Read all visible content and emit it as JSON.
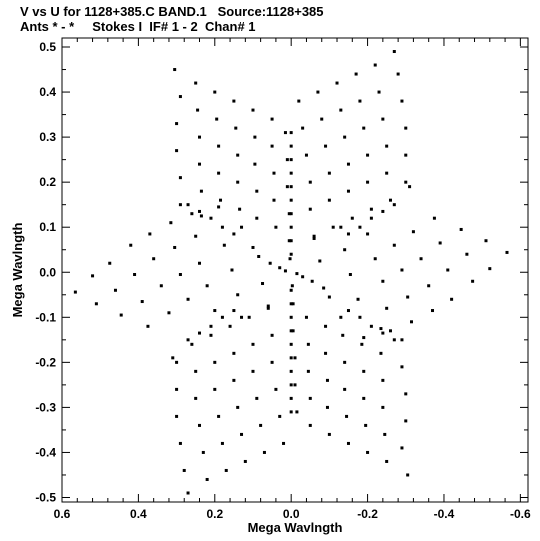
{
  "header": {
    "line1": "V vs U for 1128+385.C BAND.1   Source:1128+385",
    "line2": "Ants * - *     Stokes I  IF# 1 - 2  Chan# 1"
  },
  "chart_data": {
    "type": "scatter",
    "xlabel": "Mega Wavlngth",
    "ylabel": "Mega Wavlngth",
    "xlim": [
      0.6,
      -0.62
    ],
    "ylim": [
      -0.51,
      0.52
    ],
    "xticks": [
      0.6,
      0.4,
      0.2,
      0.0,
      -0.2,
      -0.4,
      -0.6
    ],
    "xtick_labels": [
      "0.6",
      "0.4",
      "0.2",
      "0.0",
      "-0.2",
      "-0.4",
      "-0.6"
    ],
    "yticks": [
      0.5,
      0.4,
      0.3,
      0.2,
      0.1,
      0.0,
      -0.1,
      -0.2,
      -0.3,
      -0.4,
      -0.5
    ],
    "ytick_labels": [
      "0.5",
      "0.4",
      "0.3",
      "0.2",
      "0.1",
      "0.0",
      "-0.1",
      "-0.2",
      "-0.3",
      "-0.4",
      "-0.5"
    ],
    "grid": false,
    "marker_color": "#000000",
    "series": [
      {
        "values": [
          [
            0.565,
            -0.044
          ],
          [
            0.52,
            -0.008
          ],
          [
            0.51,
            -0.07
          ],
          [
            0.475,
            0.02
          ],
          [
            0.46,
            -0.04
          ],
          [
            0.445,
            -0.095
          ],
          [
            0.42,
            0.06
          ],
          [
            0.41,
            -0.005
          ],
          [
            0.39,
            -0.065
          ],
          [
            0.375,
            -0.12
          ],
          [
            0.37,
            0.085
          ],
          [
            0.36,
            0.03
          ],
          [
            0.34,
            -0.03
          ],
          [
            0.32,
            -0.09
          ],
          [
            0.315,
            0.11
          ],
          [
            0.305,
            0.055
          ],
          [
            0.29,
            -0.005
          ],
          [
            0.27,
            -0.06
          ],
          [
            0.26,
            0.13
          ],
          [
            0.25,
            0.08
          ],
          [
            0.24,
            0.02
          ],
          [
            0.22,
            -0.03
          ],
          [
            0.2,
            -0.085
          ],
          [
            0.19,
            0.145
          ],
          [
            0.175,
            0.06
          ],
          [
            0.155,
            0.005
          ],
          [
            0.14,
            -0.05
          ],
          [
            0.13,
            -0.1
          ],
          [
            0.13,
            0.1
          ],
          [
            0.1,
            0.055
          ],
          [
            0.085,
            0.035
          ],
          [
            0.075,
            -0.025
          ],
          [
            0.06,
            -0.075
          ],
          [
            0.055,
            0.02
          ],
          [
            0.03,
            0.01
          ],
          [
            0.015,
            0.003
          ],
          [
            -0.015,
            -0.003
          ],
          [
            -0.03,
            -0.01
          ],
          [
            -0.055,
            -0.02
          ],
          [
            -0.06,
            0.075
          ],
          [
            -0.075,
            0.025
          ],
          [
            -0.085,
            -0.035
          ],
          [
            -0.1,
            -0.055
          ],
          [
            -0.13,
            -0.1
          ],
          [
            -0.13,
            0.1
          ],
          [
            -0.14,
            0.05
          ],
          [
            -0.155,
            -0.005
          ],
          [
            -0.175,
            -0.06
          ],
          [
            -0.19,
            -0.145
          ],
          [
            -0.2,
            0.085
          ],
          [
            -0.22,
            0.03
          ],
          [
            -0.24,
            -0.02
          ],
          [
            -0.25,
            -0.08
          ],
          [
            -0.26,
            -0.13
          ],
          [
            -0.27,
            0.06
          ],
          [
            -0.29,
            0.005
          ],
          [
            -0.305,
            -0.055
          ],
          [
            -0.315,
            -0.11
          ],
          [
            -0.32,
            0.09
          ],
          [
            -0.34,
            0.03
          ],
          [
            -0.36,
            -0.03
          ],
          [
            -0.37,
            -0.085
          ],
          [
            -0.375,
            0.12
          ],
          [
            -0.39,
            0.065
          ],
          [
            -0.41,
            0.005
          ],
          [
            -0.42,
            -0.06
          ],
          [
            -0.445,
            0.095
          ],
          [
            -0.46,
            0.04
          ],
          [
            -0.475,
            -0.02
          ],
          [
            -0.51,
            0.07
          ],
          [
            -0.52,
            0.008
          ],
          [
            -0.565,
            0.044
          ],
          [
            0.305,
            0.45
          ],
          [
            0.29,
            0.39
          ],
          [
            0.3,
            0.33
          ],
          [
            0.3,
            0.27
          ],
          [
            0.29,
            0.21
          ],
          [
            0.29,
            0.15
          ],
          [
            0.25,
            0.42
          ],
          [
            0.245,
            0.36
          ],
          [
            0.24,
            0.3
          ],
          [
            0.24,
            0.24
          ],
          [
            0.235,
            0.18
          ],
          [
            0.235,
            0.125
          ],
          [
            0.2,
            0.4
          ],
          [
            0.195,
            0.34
          ],
          [
            0.19,
            0.28
          ],
          [
            0.19,
            0.22
          ],
          [
            0.185,
            0.16
          ],
          [
            0.15,
            0.38
          ],
          [
            0.145,
            0.32
          ],
          [
            0.14,
            0.26
          ],
          [
            0.14,
            0.2
          ],
          [
            0.135,
            0.14
          ],
          [
            0.1,
            0.36
          ],
          [
            0.095,
            0.3
          ],
          [
            0.095,
            0.24
          ],
          [
            0.09,
            0.18
          ],
          [
            0.09,
            0.12
          ],
          [
            0.05,
            0.34
          ],
          [
            0.05,
            0.28
          ],
          [
            0.045,
            0.22
          ],
          [
            0.045,
            0.16
          ],
          [
            0.04,
            0.1
          ],
          [
            0.015,
            0.31
          ],
          [
            0.01,
            0.25
          ],
          [
            0.01,
            0.19
          ],
          [
            0.005,
            0.13
          ],
          [
            0.005,
            0.07
          ],
          [
            0.003,
            0.03
          ],
          [
            -0.305,
            -0.45
          ],
          [
            -0.29,
            -0.39
          ],
          [
            -0.3,
            -0.33
          ],
          [
            -0.3,
            -0.27
          ],
          [
            -0.29,
            -0.21
          ],
          [
            -0.29,
            -0.15
          ],
          [
            -0.25,
            -0.42
          ],
          [
            -0.245,
            -0.36
          ],
          [
            -0.24,
            -0.3
          ],
          [
            -0.24,
            -0.24
          ],
          [
            -0.235,
            -0.18
          ],
          [
            -0.235,
            -0.125
          ],
          [
            -0.2,
            -0.4
          ],
          [
            -0.195,
            -0.34
          ],
          [
            -0.19,
            -0.28
          ],
          [
            -0.19,
            -0.22
          ],
          [
            -0.185,
            -0.16
          ],
          [
            -0.15,
            -0.38
          ],
          [
            -0.145,
            -0.32
          ],
          [
            -0.14,
            -0.26
          ],
          [
            -0.14,
            -0.2
          ],
          [
            -0.135,
            -0.14
          ],
          [
            -0.1,
            -0.36
          ],
          [
            -0.095,
            -0.3
          ],
          [
            -0.095,
            -0.24
          ],
          [
            -0.09,
            -0.18
          ],
          [
            -0.09,
            -0.12
          ],
          [
            -0.05,
            -0.34
          ],
          [
            -0.05,
            -0.28
          ],
          [
            -0.045,
            -0.22
          ],
          [
            -0.045,
            -0.16
          ],
          [
            -0.04,
            -0.1
          ],
          [
            -0.015,
            -0.31
          ],
          [
            -0.01,
            -0.25
          ],
          [
            -0.01,
            -0.19
          ],
          [
            -0.005,
            -0.13
          ],
          [
            -0.005,
            -0.07
          ],
          [
            -0.003,
            -0.03
          ],
          [
            -0.27,
            0.49
          ],
          [
            -0.28,
            0.44
          ],
          [
            -0.29,
            0.38
          ],
          [
            -0.3,
            0.32
          ],
          [
            -0.3,
            0.26
          ],
          [
            -0.3,
            0.2
          ],
          [
            -0.31,
            0.19
          ],
          [
            -0.22,
            0.46
          ],
          [
            -0.23,
            0.4
          ],
          [
            -0.24,
            0.34
          ],
          [
            -0.25,
            0.28
          ],
          [
            -0.25,
            0.22
          ],
          [
            -0.26,
            0.16
          ],
          [
            -0.17,
            0.44
          ],
          [
            -0.18,
            0.38
          ],
          [
            -0.19,
            0.32
          ],
          [
            -0.2,
            0.26
          ],
          [
            -0.2,
            0.2
          ],
          [
            -0.21,
            0.14
          ],
          [
            -0.12,
            0.42
          ],
          [
            -0.13,
            0.36
          ],
          [
            -0.14,
            0.3
          ],
          [
            -0.15,
            0.24
          ],
          [
            -0.15,
            0.18
          ],
          [
            -0.16,
            0.12
          ],
          [
            -0.07,
            0.4
          ],
          [
            -0.08,
            0.34
          ],
          [
            -0.09,
            0.28
          ],
          [
            -0.1,
            0.22
          ],
          [
            -0.1,
            0.16
          ],
          [
            -0.11,
            0.1
          ],
          [
            -0.02,
            0.38
          ],
          [
            -0.03,
            0.32
          ],
          [
            -0.04,
            0.26
          ],
          [
            -0.05,
            0.2
          ],
          [
            -0.05,
            0.14
          ],
          [
            -0.06,
            0.08
          ],
          [
            0.27,
            -0.49
          ],
          [
            0.28,
            -0.44
          ],
          [
            0.29,
            -0.38
          ],
          [
            0.3,
            -0.32
          ],
          [
            0.3,
            -0.26
          ],
          [
            0.3,
            -0.2
          ],
          [
            0.31,
            -0.19
          ],
          [
            0.22,
            -0.46
          ],
          [
            0.23,
            -0.4
          ],
          [
            0.24,
            -0.34
          ],
          [
            0.25,
            -0.28
          ],
          [
            0.25,
            -0.22
          ],
          [
            0.26,
            -0.16
          ],
          [
            0.17,
            -0.44
          ],
          [
            0.18,
            -0.38
          ],
          [
            0.19,
            -0.32
          ],
          [
            0.2,
            -0.26
          ],
          [
            0.2,
            -0.2
          ],
          [
            0.21,
            -0.14
          ],
          [
            0.12,
            -0.42
          ],
          [
            0.13,
            -0.36
          ],
          [
            0.14,
            -0.3
          ],
          [
            0.15,
            -0.24
          ],
          [
            0.15,
            -0.18
          ],
          [
            0.16,
            -0.12
          ],
          [
            0.07,
            -0.4
          ],
          [
            0.08,
            -0.34
          ],
          [
            0.09,
            -0.28
          ],
          [
            0.1,
            -0.22
          ],
          [
            0.1,
            -0.16
          ],
          [
            0.11,
            -0.1
          ],
          [
            0.02,
            -0.38
          ],
          [
            0.03,
            -0.32
          ],
          [
            0.04,
            -0.26
          ],
          [
            0.05,
            -0.2
          ],
          [
            0.05,
            -0.14
          ],
          [
            0.06,
            -0.08
          ],
          [
            0.0,
            0.31
          ],
          [
            0.0,
            0.28
          ],
          [
            0.0,
            0.25
          ],
          [
            0.0,
            0.22
          ],
          [
            0.0,
            0.19
          ],
          [
            0.0,
            0.16
          ],
          [
            0.0,
            0.13
          ],
          [
            0.0,
            0.1
          ],
          [
            0.0,
            0.07
          ],
          [
            0.0,
            0.04
          ],
          [
            0.0,
            -0.04
          ],
          [
            0.0,
            -0.07
          ],
          [
            0.0,
            -0.1
          ],
          [
            0.0,
            -0.13
          ],
          [
            0.0,
            -0.16
          ],
          [
            0.0,
            -0.19
          ],
          [
            0.0,
            -0.22
          ],
          [
            0.0,
            -0.25
          ],
          [
            0.0,
            -0.28
          ],
          [
            0.0,
            -0.31
          ],
          [
            0.15,
            0.085
          ],
          [
            0.18,
            0.1
          ],
          [
            0.21,
            0.12
          ],
          [
            0.24,
            0.135
          ],
          [
            0.27,
            0.15
          ],
          [
            -0.15,
            -0.085
          ],
          [
            -0.18,
            -0.1
          ],
          [
            -0.21,
            -0.12
          ],
          [
            -0.24,
            -0.135
          ],
          [
            -0.27,
            -0.15
          ],
          [
            -0.15,
            0.085
          ],
          [
            -0.18,
            0.1
          ],
          [
            -0.21,
            0.12
          ],
          [
            -0.24,
            0.135
          ],
          [
            -0.27,
            0.15
          ],
          [
            0.15,
            -0.085
          ],
          [
            0.18,
            -0.1
          ],
          [
            0.21,
            -0.12
          ],
          [
            0.24,
            -0.135
          ],
          [
            0.27,
            -0.15
          ]
        ]
      }
    ]
  }
}
